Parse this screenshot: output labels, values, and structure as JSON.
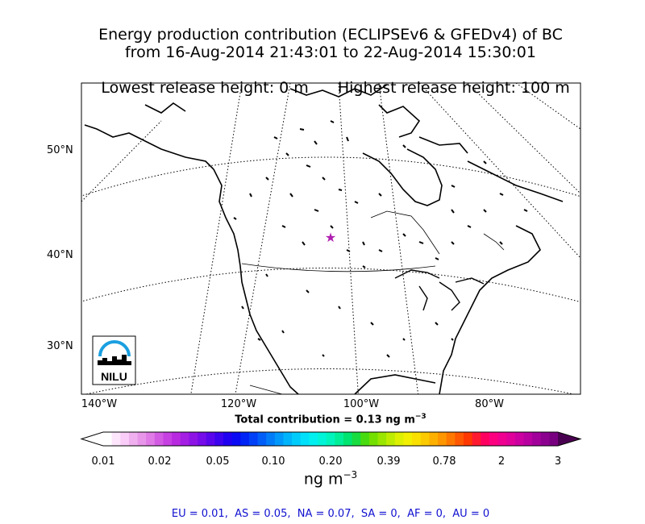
{
  "title": {
    "line1": "Energy production contribution (ECLIPSEv6 & GFEDv4) of BC",
    "line2": "from 16-Aug-2014 21:43:01 to 22-Aug-2014 15:30:01",
    "line3_left": "Lowest release height: 0 m",
    "line3_right": "Highest release height: 100 m"
  },
  "map": {
    "lat_labels": [
      "50°N",
      "40°N",
      "30°N"
    ],
    "lon_labels": [
      "140°W",
      "120°W",
      "100°W",
      "80°W"
    ],
    "release_marker": "star-icon",
    "marker_color": "#b01fb0",
    "logo_text": "NILU",
    "logo_color": "#1a9fe0"
  },
  "total": {
    "text": "Total contribution = 0.13 ng m",
    "exp": "−3"
  },
  "colorbar": {
    "ticks": [
      "0.01",
      "0.02",
      "0.05",
      "0.10",
      "0.20",
      "0.39",
      "0.78",
      "2",
      "3"
    ],
    "units": "ng m",
    "units_exp": "−3",
    "colors": [
      "#ffffff",
      "#fde6fc",
      "#f9cdf7",
      "#f0b0ef",
      "#e896ea",
      "#df7ae6",
      "#d35be3",
      "#c640e2",
      "#b82ae0",
      "#a41ee3",
      "#8e14e6",
      "#760ce9",
      "#5a06ec",
      "#3c03ef",
      "#2000f1",
      "#0a0af4",
      "#0024f6",
      "#0040f7",
      "#005ef8",
      "#007cf9",
      "#0098fa",
      "#00b4fb",
      "#00ccfb",
      "#00e0fa",
      "#00f0f0",
      "#00f4d8",
      "#00f4bc",
      "#00ee98",
      "#00e470",
      "#18dc40",
      "#48dc10",
      "#74e000",
      "#9ae600",
      "#beec00",
      "#dcf000",
      "#f2f000",
      "#fae000",
      "#fcca00",
      "#fdb000",
      "#fe9600",
      "#fe7800",
      "#ff5800",
      "#ff3800",
      "#ff1a30",
      "#ff0060",
      "#fc0080",
      "#f00090",
      "#e0009a",
      "#cc00a0",
      "#b800a0",
      "#a2009a",
      "#8c0090",
      "#780080"
    ]
  },
  "regions": "EU = 0.01,  AS = 0.05,  NA = 0.07,  SA = 0,  AF = 0,  AU = 0"
}
